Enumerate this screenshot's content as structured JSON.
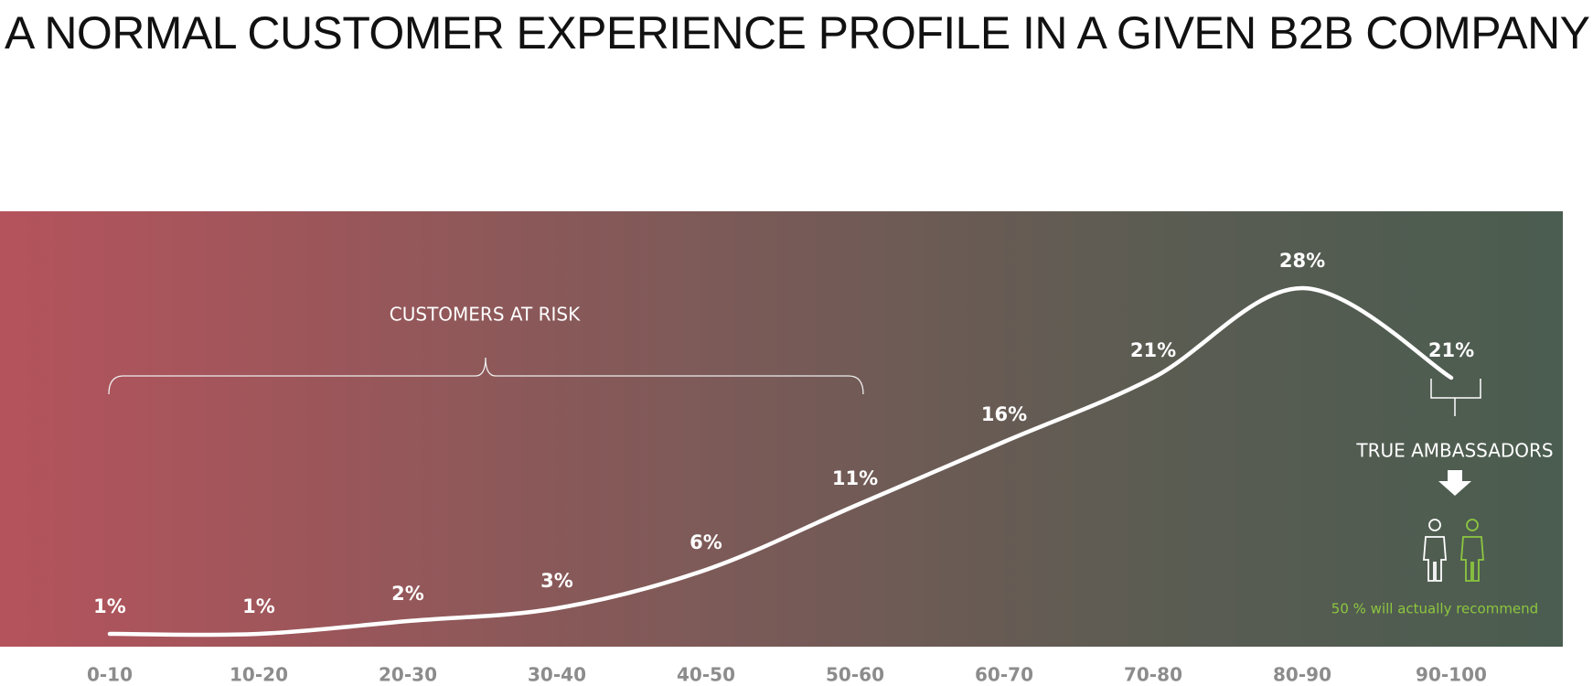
{
  "chart_data": {
    "type": "line",
    "title": "A NORMAL CUSTOMER EXPERIENCE PROFILE IN A GIVEN B2B COMPANY",
    "categories": [
      "0-10",
      "10-20",
      "20-30",
      "30-40",
      "40-50",
      "50-60",
      "60-70",
      "70-80",
      "80-90",
      "90-100"
    ],
    "values": [
      1,
      1,
      2,
      3,
      6,
      11,
      16,
      21,
      28,
      21
    ],
    "value_labels": [
      "1%",
      "1%",
      "2%",
      "3%",
      "6%",
      "11%",
      "16%",
      "21%",
      "28%",
      "21%"
    ],
    "color": "#ffffff",
    "ylim": [
      0,
      34
    ],
    "annotations": [
      "CUSTOMERS AT RISK",
      "TRUE AMBASSADORS",
      "50 % will actually recommend"
    ]
  }
}
